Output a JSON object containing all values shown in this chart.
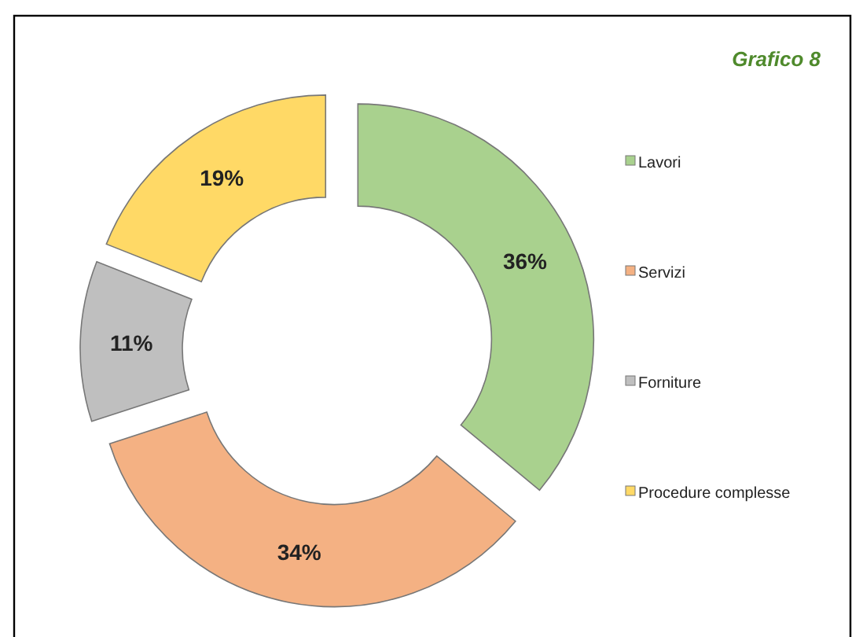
{
  "chart_data": {
    "type": "donut",
    "title": "Grafico 8",
    "categories": [
      "Lavori",
      "Servizi",
      "Forniture",
      "Procedure complesse"
    ],
    "values": [
      36,
      34,
      11,
      19
    ],
    "colors": [
      "#a9d18e",
      "#f4b183",
      "#bfbfbf",
      "#ffd966"
    ],
    "value_labels": [
      "36%",
      "34%",
      "11%",
      "19%"
    ],
    "legend": "right"
  }
}
